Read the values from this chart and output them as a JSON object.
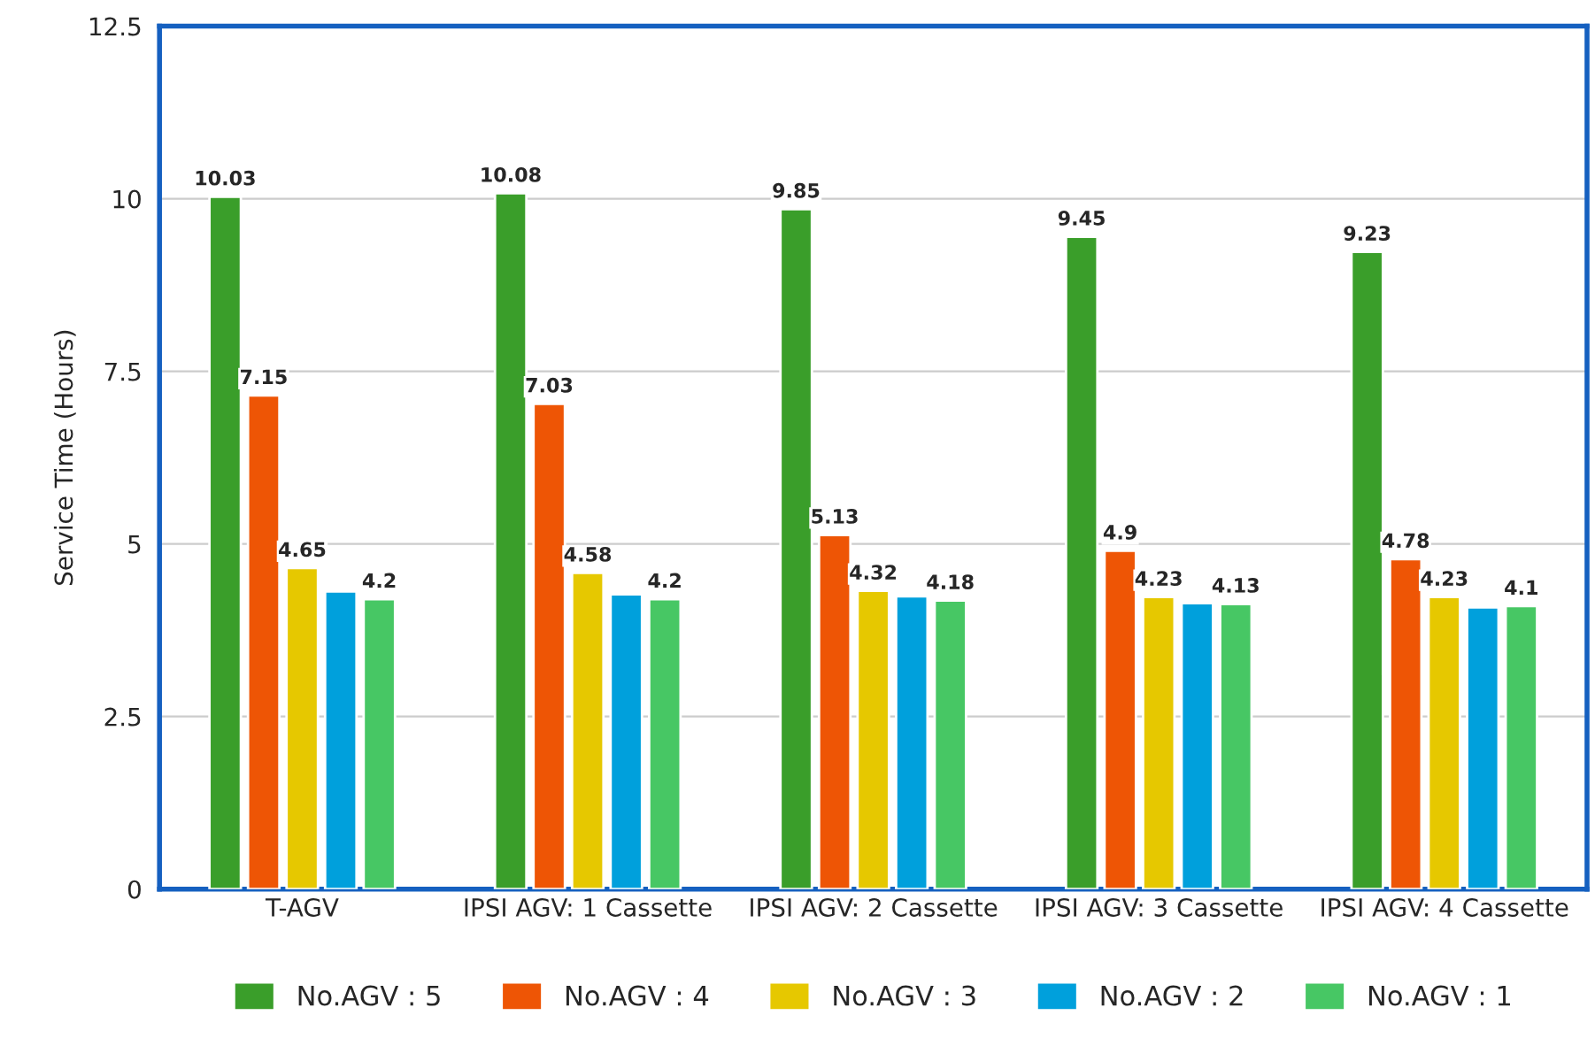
{
  "chart_data": {
    "type": "bar",
    "ylabel": "Service Time (Hours)",
    "categories": [
      "T-AGV",
      "IPSI AGV: 1 Cassette",
      "IPSI AGV: 2 Cassette",
      "IPSI AGV: 3 Cassette",
      "IPSI AGV: 4 Cassette"
    ],
    "series": [
      {
        "name": "No.AGV : 5",
        "color": "#3a9e2a",
        "values": [
          10.03,
          10.08,
          9.85,
          9.45,
          9.23
        ],
        "value_labels": [
          "10.03",
          "10.08",
          "9.85",
          "9.45",
          "9.23"
        ]
      },
      {
        "name": "No.AGV : 4",
        "color": "#ee5505",
        "values": [
          7.15,
          7.03,
          5.13,
          4.9,
          4.78
        ],
        "value_labels": [
          "7.15",
          "7.03",
          "5.13",
          "4.9",
          "4.78"
        ]
      },
      {
        "name": "No.AGV : 3",
        "color": "#e6c800",
        "values": [
          4.65,
          4.58,
          4.32,
          4.23,
          4.23
        ],
        "value_labels": [
          "4.65",
          "4.58",
          "4.32",
          "4.23",
          "4.23"
        ]
      },
      {
        "name": "No.AGV : 2",
        "color": "#00a0dc",
        "values": [
          4.31,
          4.27,
          4.24,
          4.14,
          4.08
        ],
        "value_labels": [
          null,
          null,
          null,
          null,
          null
        ]
      },
      {
        "name": "No.AGV : 1",
        "color": "#47c764",
        "values": [
          4.2,
          4.2,
          4.18,
          4.13,
          4.1
        ],
        "value_labels": [
          "4.2",
          "4.2",
          "4.18",
          "4.13",
          "4.1"
        ]
      }
    ],
    "ylim": [
      0,
      12.5
    ],
    "yticks": [
      0,
      2.5,
      5,
      7.5,
      10,
      12.5
    ],
    "grid": "y",
    "legend": "bottom"
  }
}
